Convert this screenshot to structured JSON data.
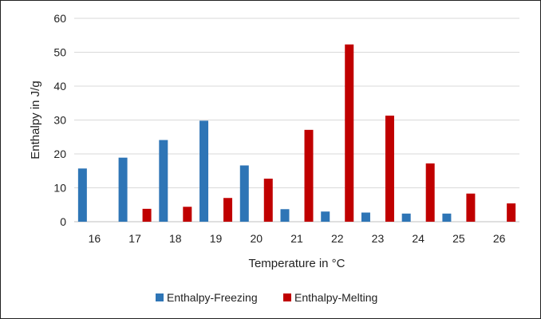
{
  "chart_data": {
    "type": "bar",
    "categories": [
      "16",
      "17",
      "18",
      "19",
      "20",
      "21",
      "22",
      "23",
      "24",
      "25",
      "26"
    ],
    "series": [
      {
        "name": "Enthalpy-Freezing",
        "color": "#2e75b6",
        "values": [
          15.7,
          18.9,
          24.1,
          29.8,
          16.6,
          3.7,
          3.0,
          2.7,
          2.4,
          2.4,
          null
        ]
      },
      {
        "name": "Enthalpy-Melting",
        "color": "#c00000",
        "values": [
          null,
          3.8,
          4.4,
          7.0,
          12.7,
          27.1,
          52.3,
          31.3,
          17.2,
          8.3,
          5.4
        ]
      }
    ],
    "xlabel": "Temperature in °C",
    "ylabel": "Enthalpy in J/g",
    "ylim": [
      0,
      60
    ],
    "yticks": [
      "0",
      "10",
      "20",
      "30",
      "40",
      "50",
      "60"
    ],
    "grid": true,
    "legend_position": "bottom"
  }
}
